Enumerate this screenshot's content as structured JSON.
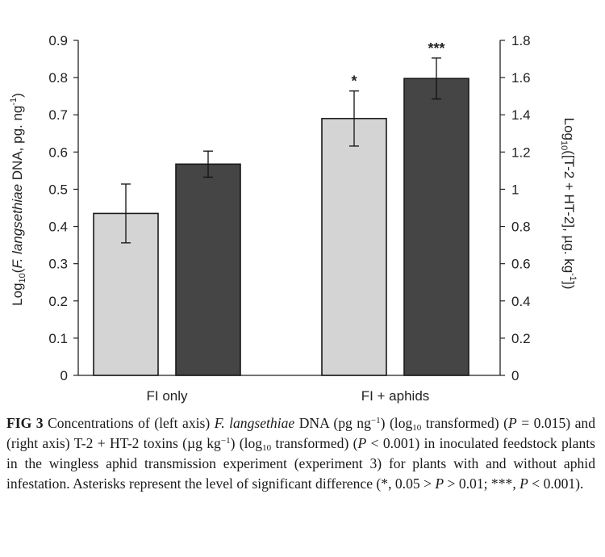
{
  "chart_data": {
    "type": "bar",
    "categories": [
      "FI only",
      "FI + aphids"
    ],
    "series": [
      {
        "values": [
          0.435,
          0.69
        ],
        "errors": [
          0.079,
          0.074
        ],
        "axis": "left",
        "color": "#d4d4d4"
      },
      {
        "values": [
          1.135,
          1.595
        ],
        "errors": [
          0.07,
          0.11
        ],
        "axis": "right",
        "color": "#454545"
      }
    ],
    "annotations": [
      {
        "category": "FI + aphids",
        "series": 0,
        "text": "*"
      },
      {
        "category": "FI + aphids",
        "series": 1,
        "text": "***"
      }
    ],
    "ylim_left": [
      0,
      0.9
    ],
    "ylim_right": [
      0,
      1.8
    ],
    "yticks_left": [
      "0",
      "0.1",
      "0.2",
      "0.3",
      "0.4",
      "0.5",
      "0.6",
      "0.7",
      "0.8",
      "0.9"
    ],
    "yticks_right": [
      "0",
      "0.2",
      "0.4",
      "0.6",
      "0.8",
      "1",
      "1.2",
      "1.4",
      "1.6",
      "1.8"
    ],
    "ylabel_left": {
      "pre": "Log",
      "sub": "10",
      "open": "(",
      "species": "F. langsethiae",
      "post": " DNA, pg. ng",
      "sup": "-1",
      "close": ")"
    },
    "ylabel_right": {
      "pre": "Log",
      "sub": "10",
      "post": "([T-2 + HT-2], µg. kg",
      "sup": "-1",
      "close": "])"
    },
    "grid": false,
    "legend": "none"
  },
  "caption": {
    "label": "FIG 3",
    "t1": " Concentrations of (left axis) ",
    "species": "F. langsethiae",
    "t2": " DNA (pg ng",
    "sup1": "−1",
    "t3": ") (log",
    "sub1": "10",
    "t4": " transformed) (",
    "p1": "P",
    "t5": " = 0.015) and (right axis) T-2 + HT-2 toxins (µg kg",
    "sup2": "−1",
    "t6": ") (log",
    "sub2": "10",
    "t7": " transformed) (",
    "p2": "P",
    "t8": " < 0.001) in inoculated feedstock plants in the wingless aphid transmission experiment (experiment 3) for plants with and without aphid infestation. Asterisks represent the level of significant difference (*, 0.05 > ",
    "p3": "P",
    "t9": " > 0.01; ***, ",
    "p4": "P",
    "t10": " < 0.001)."
  }
}
